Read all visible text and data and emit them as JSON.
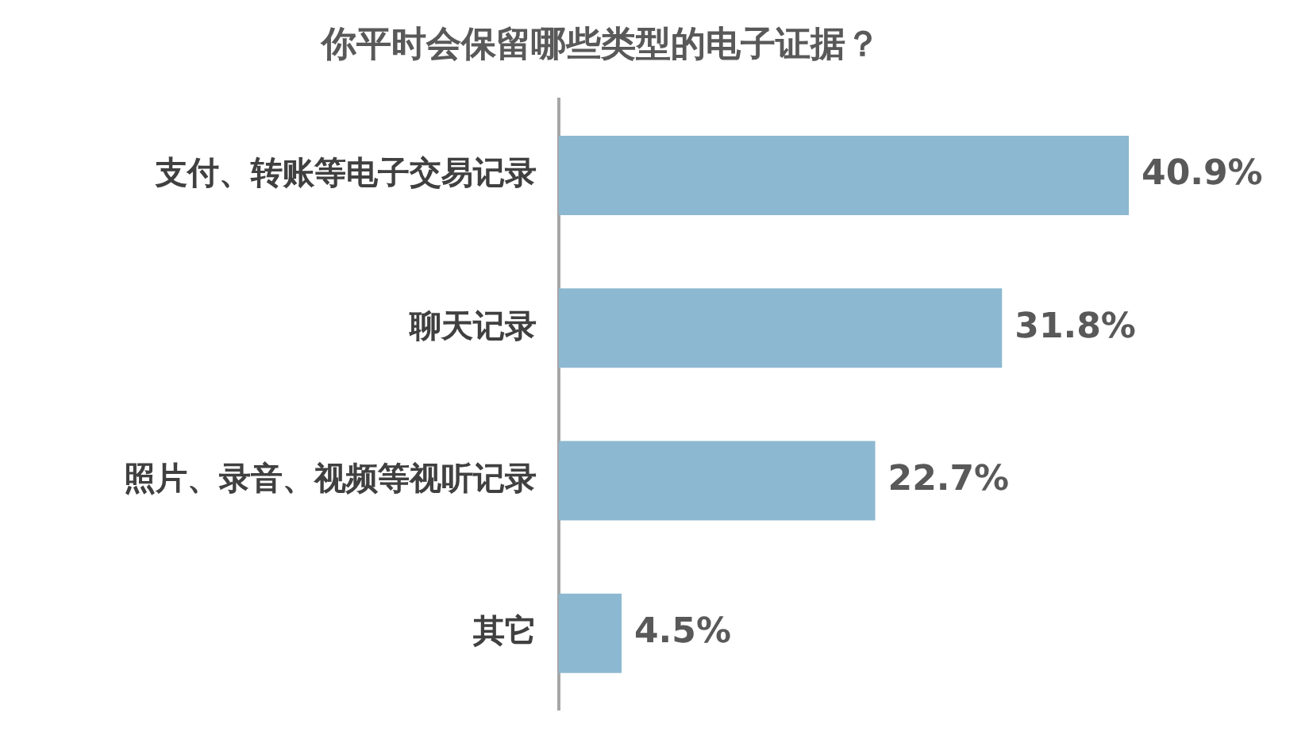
{
  "chart_data": {
    "type": "bar",
    "orientation": "horizontal",
    "title": "你平时会保留哪些类型的电子证据？",
    "categories": [
      "支付、转账等电子交易记录",
      "聊天记录",
      "照片、录音、视频等视听记录",
      "其它"
    ],
    "values": [
      40.9,
      31.8,
      22.7,
      4.5
    ],
    "color": "#8db8d1",
    "value_labels": [
      "40.9%",
      "31.8%",
      "22.7%",
      "4.5%"
    ],
    "tick_labels": "y",
    "grid": false,
    "legend": false
  }
}
